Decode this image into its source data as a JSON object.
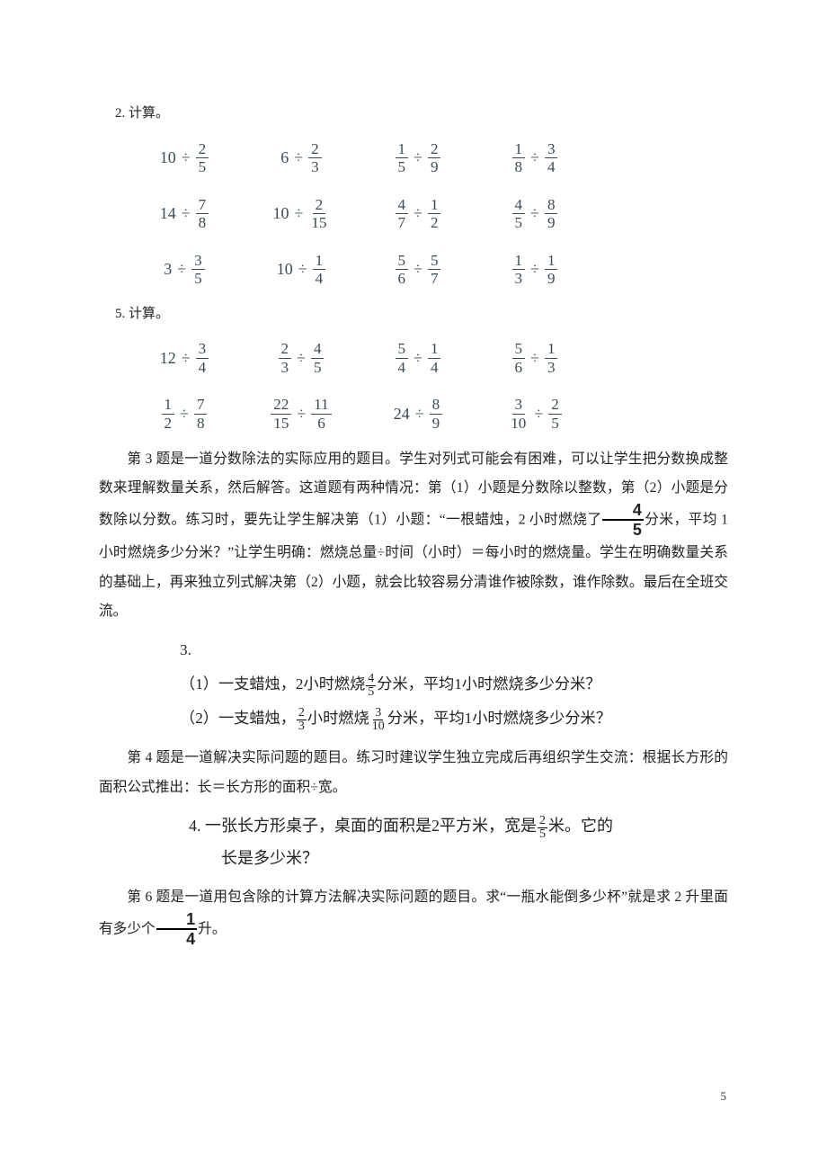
{
  "labels": {
    "sec2": "2. 计算。",
    "sec5": "5. 计算。",
    "sec3": "3.",
    "page_num": "5"
  },
  "grid2": {
    "type": "calc-grid",
    "text_color": "#3a4a52",
    "fontsize": 18,
    "rows": [
      [
        {
          "left": {
            "int": 10
          },
          "op": "÷",
          "right": {
            "n": 2,
            "d": 5
          }
        },
        {
          "left": {
            "int": 6
          },
          "op": "÷",
          "right": {
            "n": 2,
            "d": 3
          }
        },
        {
          "left": {
            "n": 1,
            "d": 5
          },
          "op": "÷",
          "right": {
            "n": 2,
            "d": 9
          }
        },
        {
          "left": {
            "n": 1,
            "d": 8
          },
          "op": "÷",
          "right": {
            "n": 3,
            "d": 4
          }
        }
      ],
      [
        {
          "left": {
            "int": 14
          },
          "op": "÷",
          "right": {
            "n": 7,
            "d": 8
          }
        },
        {
          "left": {
            "int": 10
          },
          "op": "÷",
          "right": {
            "n": 2,
            "d": 15
          }
        },
        {
          "left": {
            "n": 4,
            "d": 7
          },
          "op": "÷",
          "right": {
            "n": 1,
            "d": 2
          }
        },
        {
          "left": {
            "n": 4,
            "d": 5
          },
          "op": "÷",
          "right": {
            "n": 8,
            "d": 9
          }
        }
      ],
      [
        {
          "left": {
            "int": 3
          },
          "op": "÷",
          "right": {
            "n": 3,
            "d": 5
          }
        },
        {
          "left": {
            "int": 10
          },
          "op": "÷",
          "right": {
            "n": 1,
            "d": 4
          }
        },
        {
          "left": {
            "n": 5,
            "d": 6
          },
          "op": "÷",
          "right": {
            "n": 5,
            "d": 7
          }
        },
        {
          "left": {
            "n": 1,
            "d": 3
          },
          "op": "÷",
          "right": {
            "n": 1,
            "d": 9
          }
        }
      ]
    ]
  },
  "grid5": {
    "type": "calc-grid",
    "rows": [
      [
        {
          "left": {
            "int": 12
          },
          "op": "÷",
          "right": {
            "n": 3,
            "d": 4
          }
        },
        {
          "left": {
            "n": 2,
            "d": 3
          },
          "op": "÷",
          "right": {
            "n": 4,
            "d": 5
          }
        },
        {
          "left": {
            "n": 5,
            "d": 4
          },
          "op": "÷",
          "right": {
            "n": 1,
            "d": 4
          }
        },
        {
          "left": {
            "n": 5,
            "d": 6
          },
          "op": "÷",
          "right": {
            "n": 1,
            "d": 3
          }
        }
      ],
      [
        {
          "left": {
            "n": 1,
            "d": 2
          },
          "op": "÷",
          "right": {
            "n": 7,
            "d": 8
          }
        },
        {
          "left": {
            "n": 22,
            "d": 15
          },
          "op": "÷",
          "right": {
            "n": 11,
            "d": 6
          }
        },
        {
          "left": {
            "int": 24
          },
          "op": "÷",
          "right": {
            "n": 8,
            "d": 9
          }
        },
        {
          "left": {
            "n": 3,
            "d": 10
          },
          "op": "÷",
          "right": {
            "n": 2,
            "d": 5
          }
        }
      ]
    ]
  },
  "para3a": "第 3 题是一道分数除法的实际应用的题目。学生对列式可能会有困难，可以让学生把分数换成整数来理解数量关系，然后解答。这道题有两种情况：第（1）小题是分数除以整数，第（2）小题是分数除以分数。练习时，要先让学生解决第（1）小题：“一根蜡烛，2 小时燃烧了",
  "para3a_frac": {
    "n": 4,
    "d": 5
  },
  "para3a2": "分米，平均 1 小时燃烧多少分米？”让学生明确：燃烧总量÷时间（小时）＝每小时的燃烧量。学生在明确数量关系的基础上，再来独立列式解决第（2）小题，就会比较容易分清谁作被除数，谁作除数。最后在全班交流。",
  "q3": {
    "l1a": "（1）一支蜡烛，2小时燃烧",
    "l1_frac": {
      "n": 4,
      "d": 5
    },
    "l1b": "分米，平均1小时燃烧多少分米？",
    "l2a": "（2）一支蜡烛，",
    "l2_f1": {
      "n": 2,
      "d": 3
    },
    "l2b": "小时燃烧",
    "l2_f2": {
      "n": 3,
      "d": 10
    },
    "l2c": "分米，平均1小时燃烧多少分米？"
  },
  "para4": "第 4 题是一道解决实际问题的题目。练习时建议学生独立完成后再组织学生交流：根据长方形的面积公式推出：长＝长方形的面积÷宽。",
  "q4": {
    "l1a": "4. 一张长方形桌子，桌面的面积是2平方米，宽是",
    "l1_frac": {
      "n": 2,
      "d": 5
    },
    "l1b": "米。它的",
    "l2": "长是多少米？"
  },
  "para6a": "第 6 题是一道用包含除的计算方法解决实际问题的题目。求“一瓶水能倒多少杯”就是求 2 升里面有多少个",
  "para6_frac": {
    "n": 1,
    "d": 4
  },
  "para6b": "升。"
}
